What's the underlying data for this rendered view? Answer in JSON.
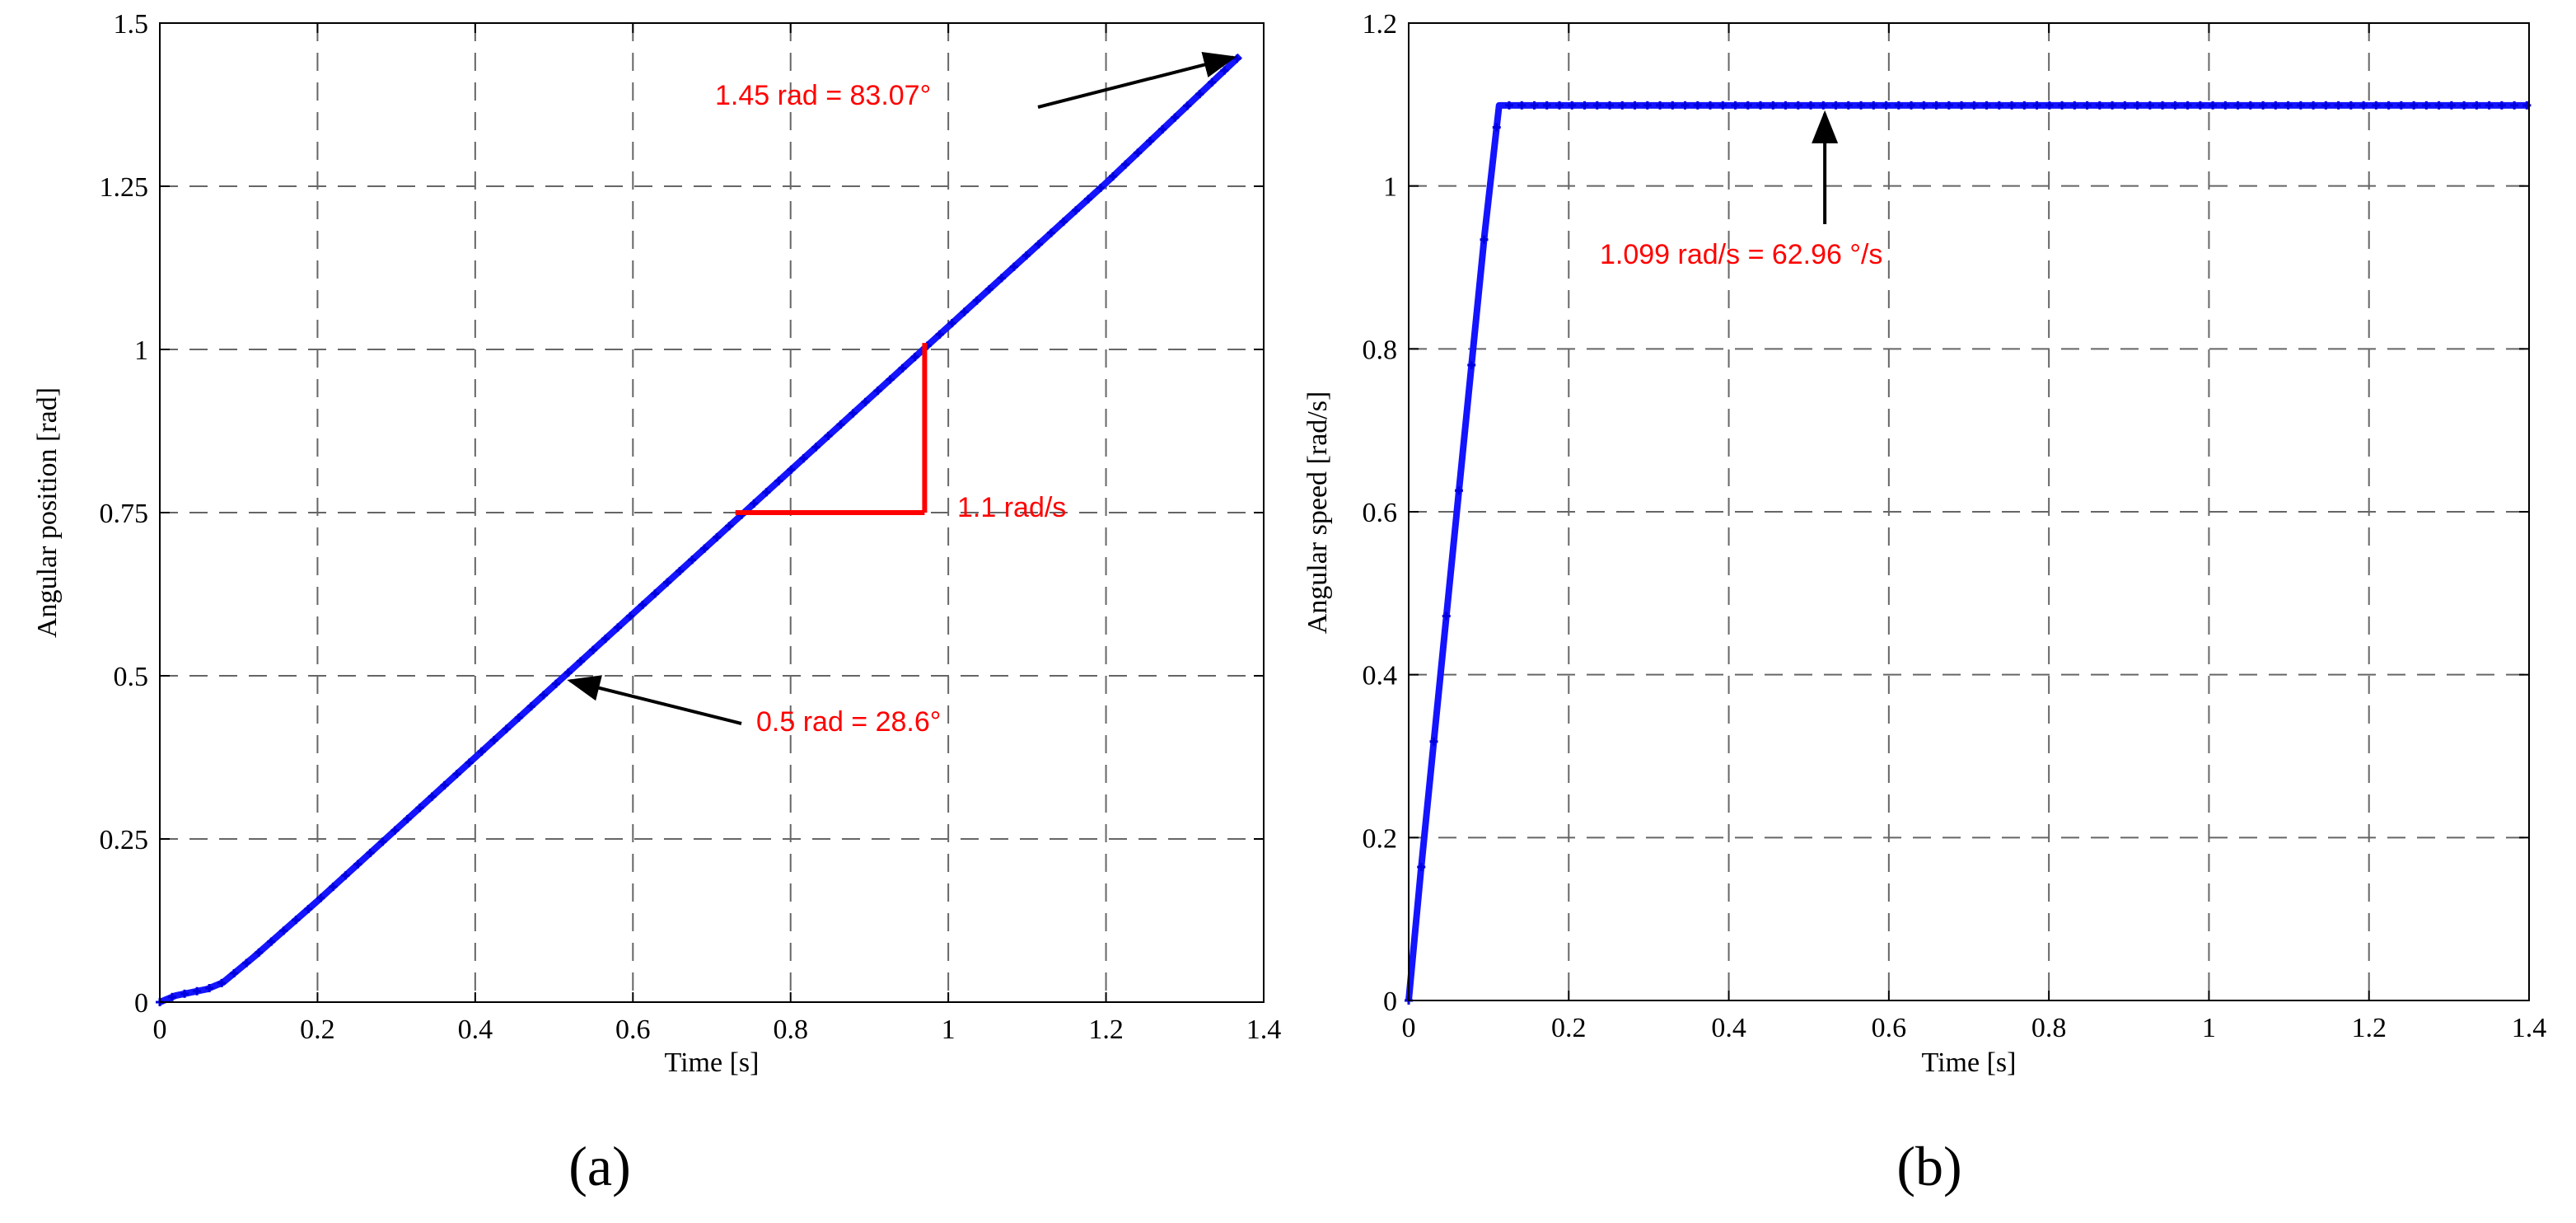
{
  "chart_data": [
    {
      "panel": "(a)",
      "type": "line",
      "xlabel": "Time [s]",
      "ylabel": "Angular position [rad]",
      "xlim": [
        0,
        1.4
      ],
      "ylim": [
        0,
        1.5
      ],
      "xticks": [
        "0",
        "0.2",
        "0.4",
        "0.6",
        "0.8",
        "1",
        "1.2",
        "1.4"
      ],
      "yticks": [
        "0",
        "0.25",
        "0.5",
        "0.75",
        "1",
        "1.25",
        "1.5"
      ],
      "grid": true,
      "color": "#1414ff",
      "series": [
        {
          "x": [
            0,
            0.02,
            0.04,
            0.06,
            0.08,
            0.1,
            0.12,
            0.2,
            0.4,
            0.6,
            0.8,
            1.0,
            1.2,
            1.37
          ],
          "y": [
            0,
            0.01,
            0.015,
            0.02,
            0.03,
            0.05,
            0.07,
            0.155,
            0.375,
            0.595,
            0.815,
            1.035,
            1.255,
            1.45
          ]
        }
      ],
      "annotations": [
        {
          "text": "1.45 rad = 83.07°",
          "x": 1.37,
          "y": 1.45
        },
        {
          "text": "0.5 rad = 28.6°",
          "x": 0.51,
          "y": 0.5
        },
        {
          "text": "1.1 rad/s",
          "slope_from": [
            0.73,
            0.75
          ],
          "slope_to": [
            0.97,
            1.01
          ]
        }
      ]
    },
    {
      "panel": "(b)",
      "type": "line",
      "xlabel": "Time [s]",
      "ylabel": "Angular speed [rad/s]",
      "xlim": [
        0,
        1.4
      ],
      "ylim": [
        0,
        1.2
      ],
      "xticks": [
        "0",
        "0.2",
        "0.4",
        "0.6",
        "0.8",
        "1",
        "1.2",
        "1.4"
      ],
      "yticks": [
        "0",
        "0.2",
        "0.4",
        "0.6",
        "0.8",
        "1",
        "1.2"
      ],
      "grid": true,
      "color": "#1414ff",
      "series": [
        {
          "x": [
            0,
            0.015,
            0.031,
            0.047,
            0.063,
            0.079,
            0.095,
            0.113,
            1.4
          ],
          "y": [
            0,
            0.157,
            0.314,
            0.471,
            0.628,
            0.785,
            0.942,
            1.099,
            1.099
          ]
        }
      ],
      "annotations": [
        {
          "text": "1.099 rad/s = 62.96 °/s",
          "x": 0.52,
          "y": 1.099
        }
      ]
    }
  ]
}
